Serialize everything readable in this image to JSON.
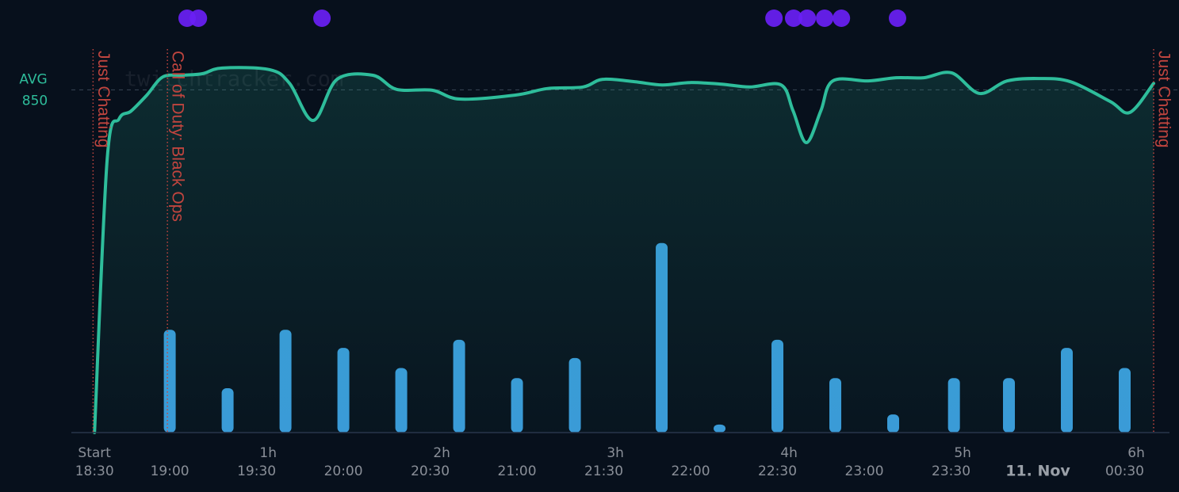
{
  "chart_data": {
    "type": "line",
    "watermark": "twitchtracker.com",
    "xlim": [
      -8,
      366
    ],
    "ylim": [
      0,
      1000
    ],
    "y2lim": [
      0,
      20
    ],
    "xticks": [
      {
        "value": 0,
        "label": "Start"
      },
      {
        "value": 60,
        "label": "1h"
      },
      {
        "value": 120,
        "label": "2h"
      },
      {
        "value": 180,
        "label": "3h"
      },
      {
        "value": 240,
        "label": "4h"
      },
      {
        "value": 300,
        "label": "5h"
      },
      {
        "value": 360,
        "label": "6h"
      }
    ],
    "x2ticks": [
      {
        "value": 0,
        "label": "18:30"
      },
      {
        "value": 26,
        "label": "19:00"
      },
      {
        "value": 56,
        "label": "19:30"
      },
      {
        "value": 86,
        "label": "20:00"
      },
      {
        "value": 116,
        "label": "20:30"
      },
      {
        "value": 146,
        "label": "21:00"
      },
      {
        "value": 176,
        "label": "21:30"
      },
      {
        "value": 206,
        "label": "22:00"
      },
      {
        "value": 236,
        "label": "22:30"
      },
      {
        "value": 266,
        "label": "23:00"
      },
      {
        "value": 296,
        "label": "23:30"
      },
      {
        "value": 326,
        "label": "11. Nov"
      },
      {
        "value": 356,
        "label": "00:30"
      }
    ],
    "average": {
      "label": "AVG",
      "value": 850
    },
    "series": [
      {
        "type": "area",
        "color": "#2ebd9b",
        "x": [
          0,
          4.4,
          8.5,
          12.6,
          18.1,
          23.6,
          30.4,
          37.3,
          44.1,
          60.5,
          67.4,
          75.6,
          83.8,
          96.2,
          104.4,
          116.7,
          126.3,
          145.5,
          156.4,
          168.8,
          175.6,
          186.6,
          196.2,
          205.8,
          216.7,
          226.3,
          237.3,
          241.4,
          246,
          251,
          255.1,
          267.4,
          277,
          286.6,
          296.2,
          305.8,
          315.3,
          326.3,
          337.3,
          351,
          357.8,
          366
        ],
        "values": [
          0,
          680,
          778,
          797,
          837,
          882,
          886,
          890,
          904,
          900,
          866,
          774,
          876,
          886,
          851,
          849,
          827,
          837,
          853,
          857,
          876,
          870,
          862,
          868,
          864,
          857,
          862,
          798,
          719,
          798,
          872,
          872,
          880,
          880,
          892,
          841,
          872,
          878,
          870,
          821,
          794,
          866
        ]
      },
      {
        "type": "bar",
        "color": "#3a9ad9",
        "axis": "y2",
        "x": [
          26,
          46,
          66,
          86,
          106,
          126,
          146,
          166,
          196,
          216,
          236,
          256,
          276,
          297,
          316,
          336,
          356
        ],
        "values": [
          5.1,
          2.2,
          5.1,
          4.2,
          3.2,
          4.6,
          2.7,
          3.7,
          9.4,
          0.4,
          4.6,
          2.7,
          0.9,
          2.7,
          2.7,
          4.2,
          3.2
        ]
      }
    ],
    "events": {
      "color": "#6a1ff5",
      "x": [
        32,
        35.9,
        78.6,
        234.8,
        241.6,
        246.3,
        252.3,
        258.1,
        277.5
      ]
    },
    "annotations": {
      "color": "#c0453f",
      "items": [
        {
          "x": -0.5,
          "label": "Just Chatting"
        },
        {
          "x": 25.2,
          "label": "Call of Duty: Black Ops"
        },
        {
          "x": 366,
          "label": "Just Chatting"
        }
      ]
    }
  }
}
